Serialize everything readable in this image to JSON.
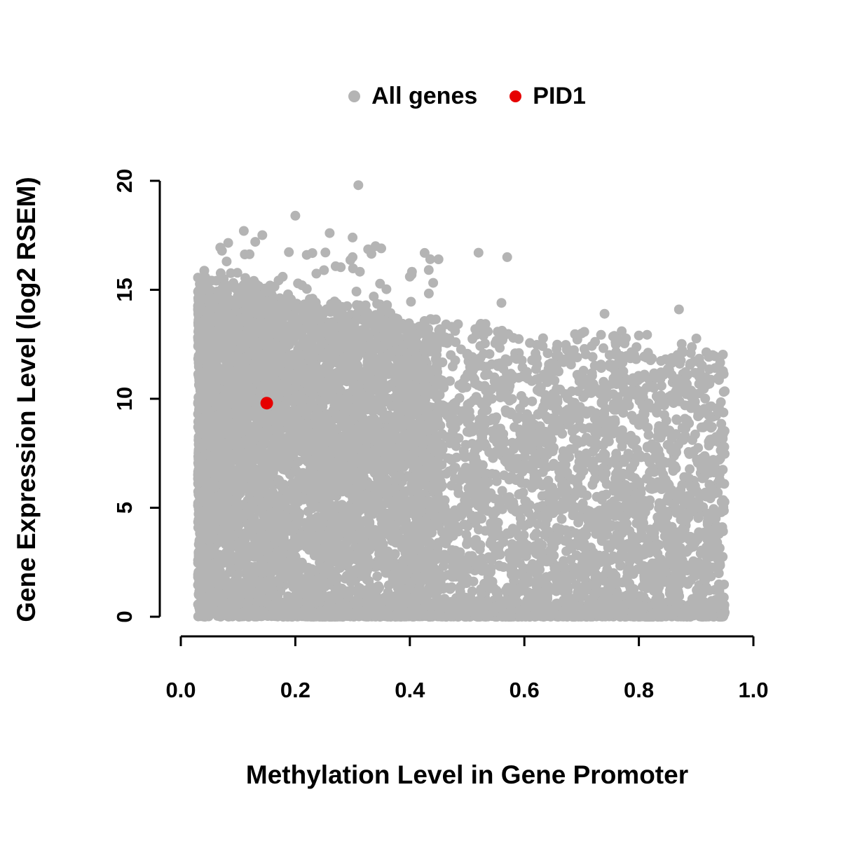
{
  "chart_data": {
    "type": "scatter",
    "title": "",
    "xlabel": "Methylation Level in Gene Promoter",
    "ylabel": "Gene Expression Level (log2 RSEM)",
    "xlim": [
      0,
      1
    ],
    "ylim": [
      0,
      20
    ],
    "x_ticks": [
      0,
      0.2,
      0.4,
      0.6,
      0.8,
      1.0
    ],
    "x_tick_labels": [
      "0.0",
      "0.2",
      "0.4",
      "0.6",
      "0.8",
      "1.0"
    ],
    "y_ticks": [
      0,
      5,
      10,
      15,
      20
    ],
    "y_tick_labels": [
      "0",
      "5",
      "10",
      "15",
      "20"
    ],
    "grid": false,
    "legend_position": "top-center",
    "legend": [
      {
        "label": "All genes",
        "color": "#b4b4b4"
      },
      {
        "label": "PID1",
        "color": "#e60000"
      }
    ],
    "point_radius": 7,
    "highlight_point_radius": 9,
    "axis_color": "#000000",
    "series": [
      {
        "name": "All genes",
        "color": "#b4b4b4",
        "generator": {
          "seed": 1337,
          "x_max_clamp": 0.95,
          "clusters": [
            {
              "n": 5200,
              "x_min": 0.03,
              "x_span": 0.42,
              "x_pow": 1.35,
              "env_base": 15.6,
              "env_slope": -5.5,
              "env_noise": 1.6,
              "y_pow": 0.85
            },
            {
              "n": 2600,
              "x_min": 0.38,
              "x_span": 0.57,
              "x_pow": 0.9,
              "env_base": 14.2,
              "env_slope": -2.5,
              "env_noise": 2.0,
              "y_pow": 1.25
            },
            {
              "n": 1300,
              "x_min": 0.03,
              "x_span": 0.92,
              "x_pow": 1.0,
              "env_base": 0.6,
              "env_slope": 0.0,
              "env_noise": 0.3,
              "y_pow": 2.0
            },
            {
              "n": 40,
              "x_min": 0.05,
              "x_span": 0.4,
              "x_pow": 1.0,
              "env_base": 17.5,
              "env_slope": -3.0,
              "env_noise": 1.2,
              "y_pow": 0.05
            }
          ]
        },
        "outlier_points": [
          [
            0.31,
            19.8
          ],
          [
            0.2,
            18.4
          ],
          [
            0.11,
            17.7
          ],
          [
            0.26,
            17.6
          ],
          [
            0.3,
            17.4
          ],
          [
            0.13,
            17.2
          ],
          [
            0.34,
            17.0
          ],
          [
            0.35,
            16.9
          ],
          [
            0.52,
            16.7
          ],
          [
            0.22,
            16.6
          ],
          [
            0.57,
            16.5
          ],
          [
            0.3,
            16.5
          ],
          [
            0.45,
            16.4
          ],
          [
            0.08,
            16.3
          ],
          [
            0.25,
            15.9
          ],
          [
            0.4,
            15.6
          ],
          [
            0.56,
            14.4
          ],
          [
            0.87,
            14.1
          ],
          [
            0.74,
            13.9
          ],
          [
            0.77,
            13.1
          ],
          [
            0.7,
            13.0
          ],
          [
            0.8,
            12.9
          ]
        ]
      },
      {
        "name": "PID1",
        "color": "#e60000",
        "points": [
          [
            0.15,
            9.8
          ]
        ]
      }
    ]
  }
}
